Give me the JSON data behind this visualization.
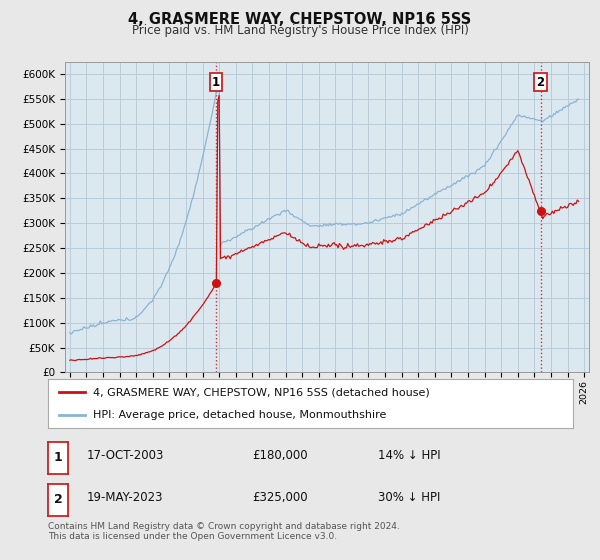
{
  "title": "4, GRASMERE WAY, CHEPSTOW, NP16 5SS",
  "subtitle": "Price paid vs. HM Land Registry's House Price Index (HPI)",
  "hpi_color": "#8ab4d4",
  "property_color": "#cc1111",
  "vline_color": "#cc1111",
  "background_color": "#e8e8e8",
  "plot_bg_color": "#dce8f0",
  "grid_color": "#b8ccd8",
  "ylim": [
    0,
    625000
  ],
  "yticks": [
    0,
    50000,
    100000,
    150000,
    200000,
    250000,
    300000,
    350000,
    400000,
    450000,
    500000,
    550000,
    600000
  ],
  "ytick_labels": [
    "£0",
    "£50K",
    "£100K",
    "£150K",
    "£200K",
    "£250K",
    "£300K",
    "£350K",
    "£400K",
    "£450K",
    "£500K",
    "£550K",
    "£600K"
  ],
  "xlim_start": 1994.7,
  "xlim_end": 2026.3,
  "sale1_x": 2003.8,
  "sale1_y": 180000,
  "sale1_label": "1",
  "sale2_x": 2023.37,
  "sale2_y": 325000,
  "sale2_label": "2",
  "legend_line1": "4, GRASMERE WAY, CHEPSTOW, NP16 5SS (detached house)",
  "legend_line2": "HPI: Average price, detached house, Monmouthshire",
  "table_row1": [
    "1",
    "17-OCT-2003",
    "£180,000",
    "14% ↓ HPI"
  ],
  "table_row2": [
    "2",
    "19-MAY-2023",
    "£325,000",
    "30% ↓ HPI"
  ],
  "footer": "Contains HM Land Registry data © Crown copyright and database right 2024.\nThis data is licensed under the Open Government Licence v3.0."
}
